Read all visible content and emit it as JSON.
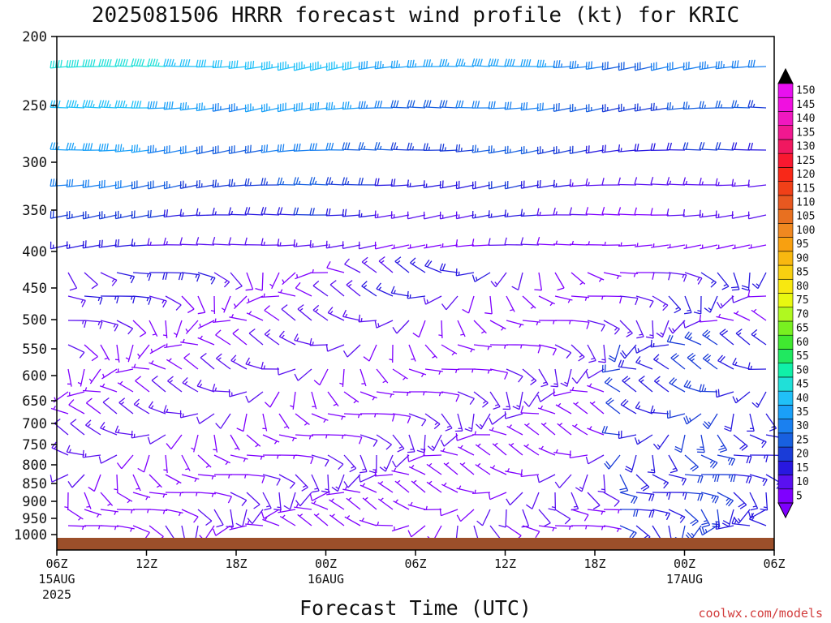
{
  "chart_data": {
    "type": "wind-barb-time-height",
    "title": "2025081506 HRRR forecast wind profile (kt) for KRIC",
    "xlabel": "Forecast Time (UTC)",
    "ylabel": "",
    "y_ticks": [
      "200",
      "250",
      "300",
      "350",
      "400",
      "450",
      "500",
      "550",
      "600",
      "650",
      "700",
      "750",
      "800",
      "850",
      "900",
      "950",
      "1000"
    ],
    "x_ticks": [
      {
        "label": "06Z",
        "sub": "15AUG",
        "sub2": "2025"
      },
      {
        "label": "12Z",
        "sub": "",
        "sub2": ""
      },
      {
        "label": "18Z",
        "sub": "",
        "sub2": ""
      },
      {
        "label": "00Z",
        "sub": "16AUG",
        "sub2": ""
      },
      {
        "label": "06Z",
        "sub": "",
        "sub2": ""
      },
      {
        "label": "12Z",
        "sub": "",
        "sub2": ""
      },
      {
        "label": "18Z",
        "sub": "",
        "sub2": ""
      },
      {
        "label": "00Z",
        "sub": "17AUG",
        "sub2": ""
      },
      {
        "label": "06Z",
        "sub": "",
        "sub2": ""
      }
    ],
    "colorbar": {
      "levels": [
        "5",
        "10",
        "15",
        "20",
        "25",
        "30",
        "35",
        "40",
        "45",
        "50",
        "55",
        "60",
        "65",
        "70",
        "75",
        "80",
        "85",
        "90",
        "95",
        "100",
        "105",
        "110",
        "115",
        "120",
        "125",
        "130",
        "135",
        "140",
        "145",
        "150"
      ],
      "colors": [
        "#7f00ff",
        "#5a10f0",
        "#2818e0",
        "#1a3cd8",
        "#1860e0",
        "#1a80f0",
        "#1aa0f8",
        "#20c0f8",
        "#20e0d8",
        "#10f0a8",
        "#20e860",
        "#40e830",
        "#78f020",
        "#b0f820",
        "#e8f810",
        "#f8e810",
        "#f8d010",
        "#f8b810",
        "#f8a010",
        "#f08820",
        "#e87020",
        "#e85820",
        "#f04018",
        "#f82818",
        "#f81830",
        "#f01860",
        "#f01890",
        "#f018c0",
        "#f010e0",
        "#e810f0"
      ]
    },
    "surface_color": "#9b4f2a",
    "credit": "coolwx.com/models"
  }
}
